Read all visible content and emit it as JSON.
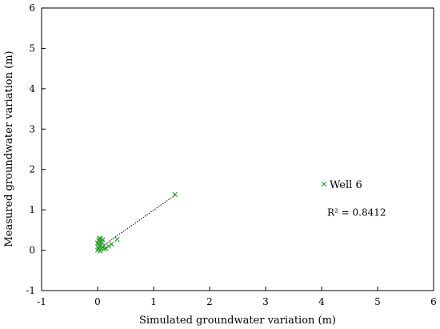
{
  "chart_data": {
    "type": "scatter",
    "title": "",
    "xlabel": "Simulated groundwater variation (m)",
    "ylabel": "Measured groundwater variation (m)",
    "xlim": [
      -1,
      6
    ],
    "ylim": [
      -1,
      6
    ],
    "xticks": [
      -1,
      0,
      1,
      2,
      3,
      4,
      5,
      6
    ],
    "yticks": [
      -1,
      0,
      1,
      2,
      3,
      4,
      5,
      6
    ],
    "grid": false,
    "legend_placement": "right",
    "series": [
      {
        "name": "Well 6",
        "marker": "x",
        "color": "#2ca02c",
        "points": [
          [
            0.0,
            0.0
          ],
          [
            0.02,
            0.05
          ],
          [
            0.03,
            0.1
          ],
          [
            0.01,
            0.15
          ],
          [
            0.04,
            0.2
          ],
          [
            0.02,
            0.25
          ],
          [
            0.05,
            0.28
          ],
          [
            0.08,
            0.2
          ],
          [
            0.06,
            0.12
          ],
          [
            0.1,
            0.08
          ],
          [
            0.12,
            0.03
          ],
          [
            0.15,
            0.05
          ],
          [
            0.05,
            -0.02
          ],
          [
            0.0,
            0.18
          ],
          [
            0.03,
            0.3
          ],
          [
            0.09,
            0.26
          ],
          [
            0.2,
            0.1
          ],
          [
            0.25,
            0.15
          ],
          [
            0.35,
            0.27
          ],
          [
            0.02,
            0.02
          ],
          [
            0.07,
            0.05
          ],
          [
            1.38,
            1.38
          ]
        ]
      }
    ],
    "trendline": {
      "x": [
        0.0,
        1.38
      ],
      "y": [
        0.02,
        1.36
      ],
      "style": "dotted"
    },
    "annotation": "R² = 0.8412",
    "annotation_pos": [
      4.1,
      0.85
    ]
  }
}
